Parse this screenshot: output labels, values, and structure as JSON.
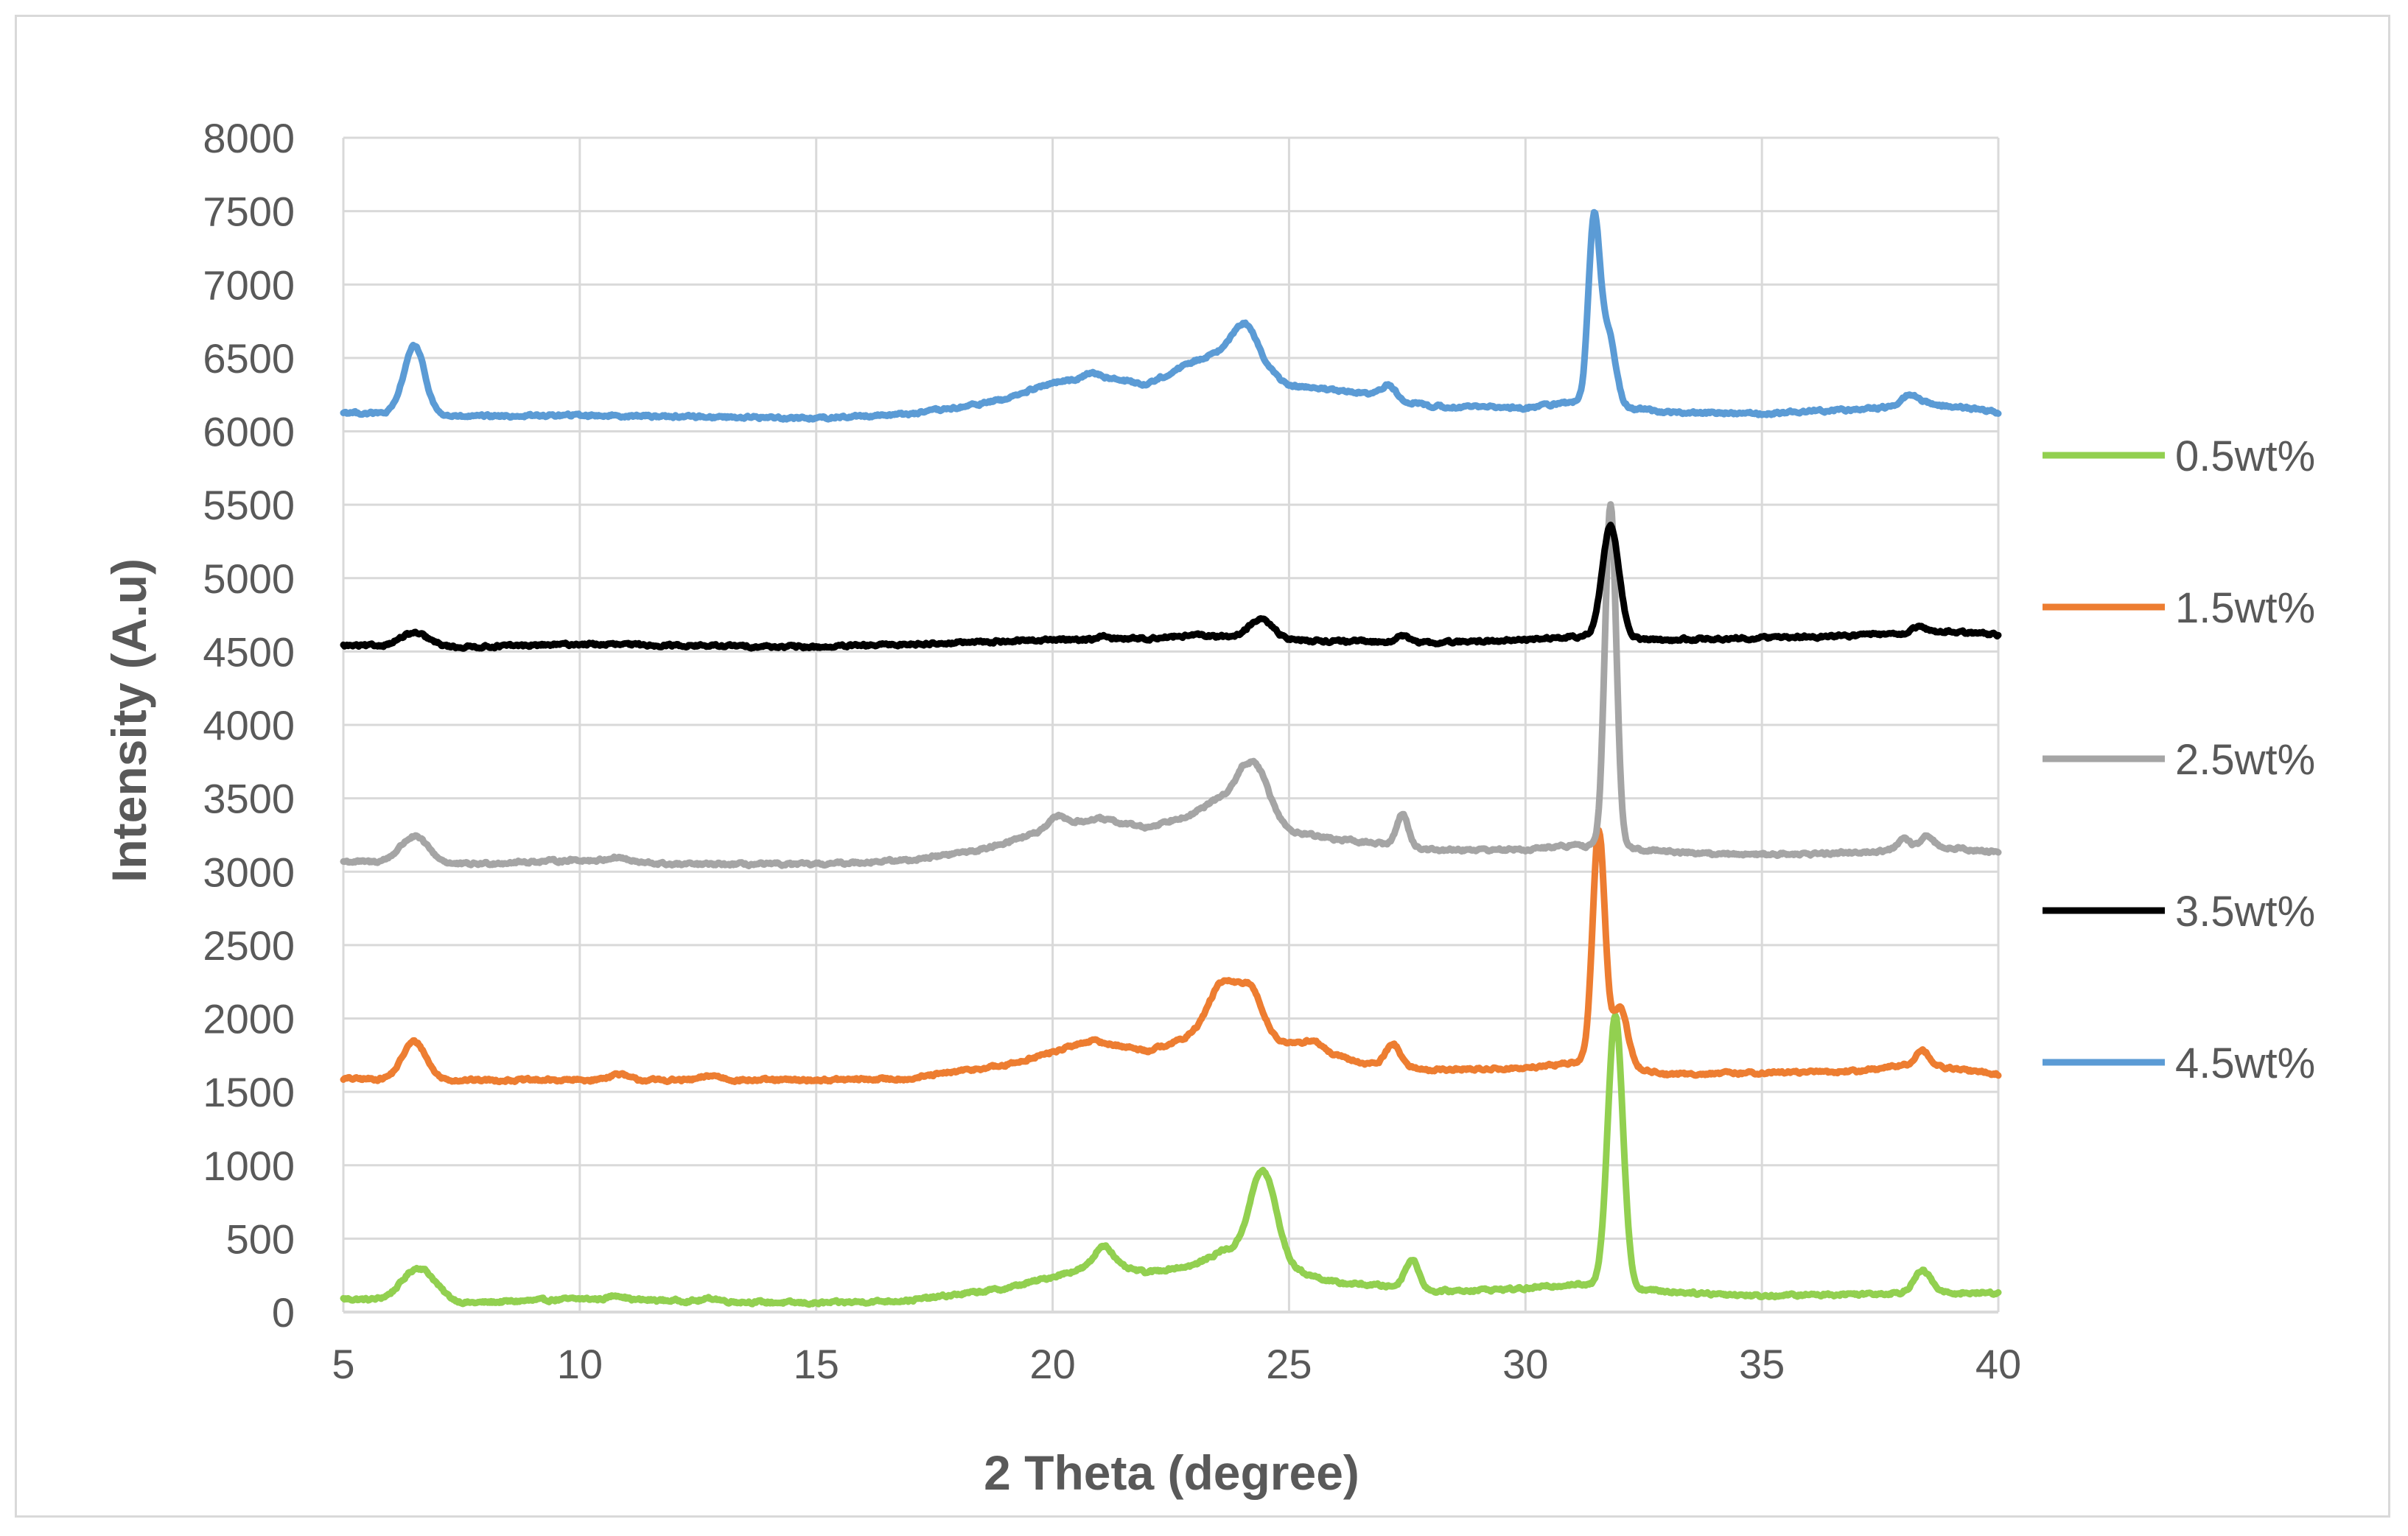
{
  "chart_data": {
    "type": "line",
    "title": "",
    "xlabel": "2 Theta (degree)",
    "ylabel": "Intensity (A.u)",
    "xlim": [
      5,
      40
    ],
    "ylim": [
      0,
      8000
    ],
    "xticks": [
      5,
      10,
      15,
      20,
      25,
      30,
      35,
      40
    ],
    "yticks": [
      0,
      500,
      1000,
      1500,
      2000,
      2500,
      3000,
      3500,
      4000,
      4500,
      5000,
      5500,
      6000,
      6500,
      7000,
      7500,
      8000
    ],
    "grid": true,
    "legend_position": "right",
    "series": [
      {
        "name": "0.5wt%",
        "color": "#92d050",
        "baseline": [
          [
            5,
            90
          ],
          [
            7.5,
            60
          ],
          [
            10,
            90
          ],
          [
            15,
            60
          ],
          [
            17,
            80
          ],
          [
            19,
            160
          ],
          [
            20,
            240
          ],
          [
            21,
            330
          ],
          [
            22,
            270
          ],
          [
            23,
            320
          ],
          [
            23.6,
            420
          ],
          [
            26,
            200
          ],
          [
            27,
            180
          ],
          [
            28,
            140
          ],
          [
            30,
            160
          ],
          [
            31,
            190
          ],
          [
            33,
            140
          ],
          [
            35,
            110
          ],
          [
            38,
            130
          ],
          [
            40,
            130
          ]
        ],
        "peaks": [
          [
            6.6,
            0.35,
            230
          ],
          [
            10.8,
            0.15,
            30
          ],
          [
            12.8,
            0.15,
            20
          ],
          [
            21.1,
            0.18,
            130
          ],
          [
            24.45,
            0.28,
            620
          ],
          [
            27.6,
            0.15,
            200
          ],
          [
            31.9,
            0.16,
            1860
          ],
          [
            38.4,
            0.18,
            150
          ]
        ]
      },
      {
        "name": "1.5wt%",
        "color": "#ed7d31",
        "baseline": [
          [
            5,
            1590
          ],
          [
            7,
            1580
          ],
          [
            10,
            1580
          ],
          [
            15,
            1580
          ],
          [
            17,
            1590
          ],
          [
            18,
            1640
          ],
          [
            19,
            1680
          ],
          [
            20,
            1770
          ],
          [
            20.8,
            1850
          ],
          [
            22,
            1780
          ],
          [
            23,
            1880
          ],
          [
            24.8,
            1840
          ],
          [
            25.5,
            1790
          ],
          [
            26.5,
            1700
          ],
          [
            28,
            1650
          ],
          [
            30,
            1660
          ],
          [
            31,
            1700
          ],
          [
            31.3,
            1710
          ],
          [
            33,
            1620
          ],
          [
            37,
            1640
          ],
          [
            38,
            1680
          ],
          [
            39,
            1660
          ],
          [
            40,
            1620
          ]
        ],
        "peaks": [
          [
            6.5,
            0.25,
            260
          ],
          [
            10.8,
            0.2,
            40
          ],
          [
            12.8,
            0.2,
            30
          ],
          [
            23.6,
            0.3,
            370
          ],
          [
            24.2,
            0.25,
            320
          ],
          [
            25.5,
            0.2,
            60
          ],
          [
            27.2,
            0.15,
            150
          ],
          [
            31.55,
            0.13,
            1580
          ],
          [
            32,
            0.16,
            400
          ],
          [
            38.4,
            0.15,
            110
          ]
        ]
      },
      {
        "name": "2.5wt%",
        "color": "#a5a5a5",
        "baseline": [
          [
            5,
            3070
          ],
          [
            7.5,
            3050
          ],
          [
            10,
            3080
          ],
          [
            12,
            3050
          ],
          [
            15,
            3050
          ],
          [
            17,
            3080
          ],
          [
            18.5,
            3150
          ],
          [
            19.5,
            3250
          ],
          [
            20.3,
            3330
          ],
          [
            21,
            3360
          ],
          [
            22,
            3300
          ],
          [
            23,
            3400
          ],
          [
            24,
            3600
          ],
          [
            25,
            3280
          ],
          [
            26,
            3220
          ],
          [
            27,
            3190
          ],
          [
            28,
            3150
          ],
          [
            30,
            3150
          ],
          [
            31,
            3180
          ],
          [
            32.5,
            3150
          ],
          [
            34,
            3120
          ],
          [
            36,
            3120
          ],
          [
            37.5,
            3140
          ],
          [
            38.5,
            3180
          ],
          [
            40,
            3130
          ]
        ],
        "peaks": [
          [
            6.5,
            0.3,
            180
          ],
          [
            10.8,
            0.2,
            30
          ],
          [
            20.1,
            0.15,
            70
          ],
          [
            24.3,
            0.25,
            230
          ],
          [
            27.4,
            0.12,
            220
          ],
          [
            31.8,
            0.12,
            2340
          ],
          [
            38,
            0.12,
            60
          ],
          [
            38.5,
            0.12,
            60
          ]
        ]
      },
      {
        "name": "3.5wt%",
        "color": "#000000",
        "baseline": [
          [
            5,
            4540
          ],
          [
            7.5,
            4530
          ],
          [
            10,
            4550
          ],
          [
            15,
            4530
          ],
          [
            20,
            4580
          ],
          [
            22,
            4590
          ],
          [
            23,
            4610
          ],
          [
            25,
            4580
          ],
          [
            26,
            4570
          ],
          [
            28,
            4560
          ],
          [
            30,
            4580
          ],
          [
            31,
            4600
          ],
          [
            33,
            4580
          ],
          [
            36,
            4600
          ],
          [
            38,
            4620
          ],
          [
            39,
            4640
          ],
          [
            40,
            4610
          ]
        ],
        "peaks": [
          [
            6.5,
            0.3,
            90
          ],
          [
            21.1,
            0.1,
            20
          ],
          [
            24.4,
            0.25,
            130
          ],
          [
            27.4,
            0.15,
            40
          ],
          [
            31.8,
            0.18,
            760
          ],
          [
            38.3,
            0.15,
            40
          ]
        ]
      },
      {
        "name": "4.5wt%",
        "color": "#5b9bd5",
        "baseline": [
          [
            5,
            6130
          ],
          [
            7.5,
            6100
          ],
          [
            10,
            6110
          ],
          [
            15,
            6090
          ],
          [
            17,
            6120
          ],
          [
            18,
            6160
          ],
          [
            19,
            6220
          ],
          [
            20,
            6330
          ],
          [
            21,
            6370
          ],
          [
            22,
            6320
          ],
          [
            23,
            6480
          ],
          [
            23.7,
            6560
          ],
          [
            24.6,
            6400
          ],
          [
            25,
            6310
          ],
          [
            26,
            6280
          ],
          [
            27,
            6240
          ],
          [
            28,
            6170
          ],
          [
            30,
            6160
          ],
          [
            31,
            6200
          ],
          [
            33,
            6130
          ],
          [
            35,
            6120
          ],
          [
            37,
            6150
          ],
          [
            37.8,
            6170
          ],
          [
            38.3,
            6200
          ],
          [
            40,
            6130
          ]
        ],
        "peaks": [
          [
            6.5,
            0.22,
            470
          ],
          [
            20.8,
            0.15,
            40
          ],
          [
            24.1,
            0.25,
            240
          ],
          [
            27.1,
            0.15,
            80
          ],
          [
            31.45,
            0.12,
            1230
          ],
          [
            31.75,
            0.15,
            500
          ],
          [
            38.1,
            0.15,
            60
          ]
        ]
      }
    ]
  }
}
